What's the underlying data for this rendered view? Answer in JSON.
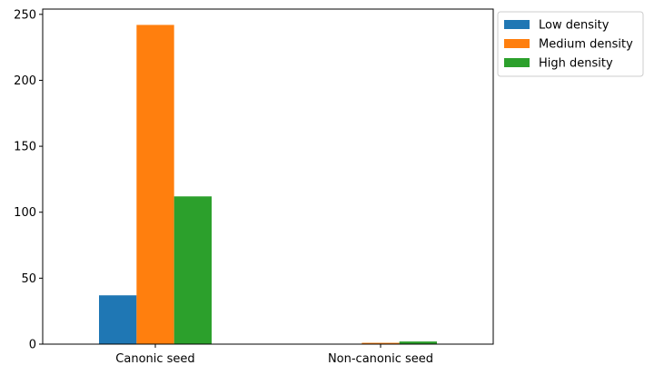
{
  "chart_data": {
    "type": "bar",
    "categories": [
      "Canonic seed",
      "Non-canonic seed"
    ],
    "series": [
      {
        "name": "Low density",
        "values": [
          37,
          0
        ],
        "color": "#1f77b4"
      },
      {
        "name": "Medium density",
        "values": [
          242,
          1
        ],
        "color": "#ff7f0e"
      },
      {
        "name": "High density",
        "values": [
          112,
          2
        ],
        "color": "#2ca02c"
      }
    ],
    "title": "",
    "xlabel": "",
    "ylabel": "",
    "ylim": [
      0,
      254
    ],
    "yticks": [
      0,
      50,
      100,
      150,
      200,
      250
    ],
    "grid": false,
    "legend_position": "outside-top-right"
  }
}
